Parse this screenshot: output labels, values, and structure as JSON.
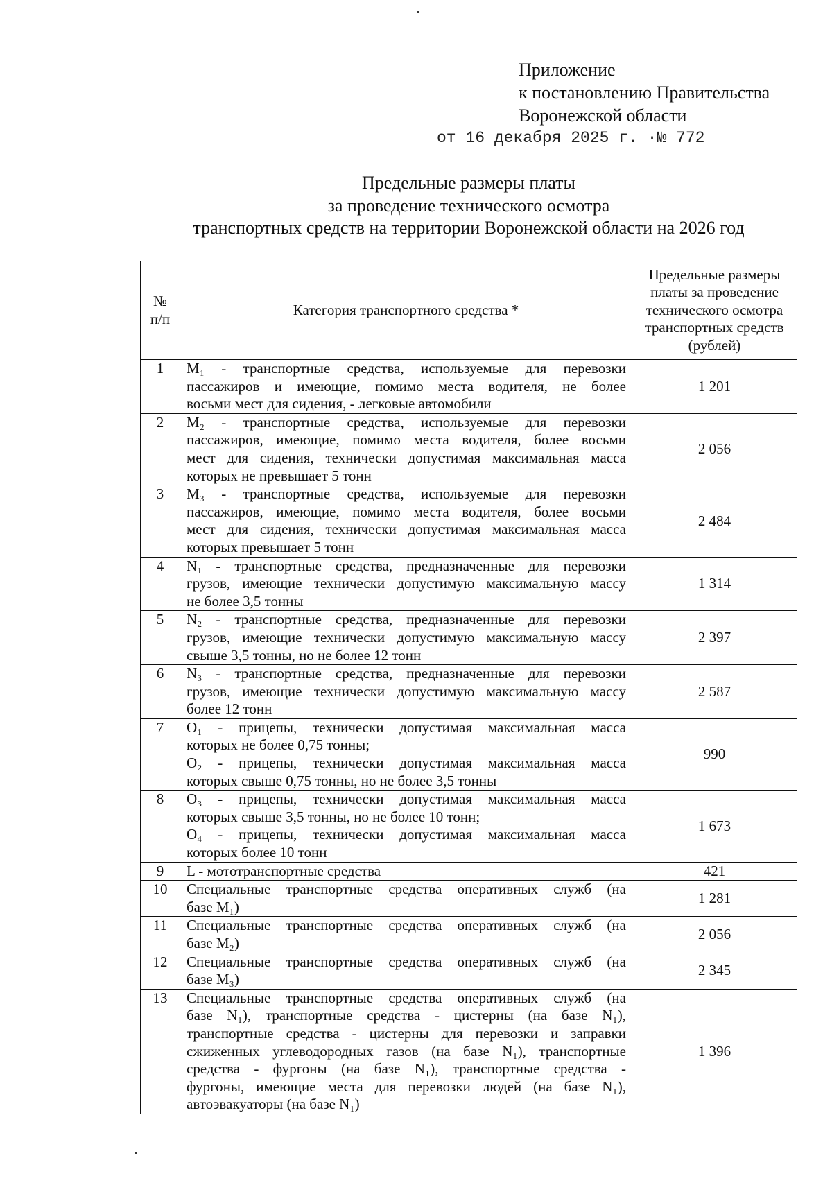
{
  "appendix": {
    "lines": [
      "Приложение",
      "к постановлению Правительства",
      "Воронежской области"
    ],
    "date_line": "от 16 декабря 2025 г. ·№ 772"
  },
  "title": {
    "lines": [
      "Предельные размеры платы",
      "за проведение технического осмотра",
      "транспортных средств на территории Воронежской области на 2026 год"
    ]
  },
  "table": {
    "headers": {
      "num": [
        "№",
        "п/п"
      ],
      "category": "Категория транспортного средства *",
      "price": [
        "Предельные размеры",
        "платы за проведение",
        "технического осмотра",
        "транспортных средств",
        "(рублей)"
      ]
    },
    "rows": [
      {
        "num": "1",
        "paragraphs": [
          [
            "M₁ - транспортные средства, используемые для перевозки",
            "пассажиров и имеющие, помимо места водителя, не более",
            "восьми мест для сидения, - легковые автомобили"
          ]
        ],
        "price": "1 201"
      },
      {
        "num": "2",
        "paragraphs": [
          [
            "M₂ - транспортные средства, используемые для перевозки",
            "пассажиров, имеющие, помимо места водителя, более восьми",
            "мест для сидения, технически допустимая максимальная масса",
            "которых не превышает 5 тонн"
          ]
        ],
        "price": "2 056"
      },
      {
        "num": "3",
        "paragraphs": [
          [
            "M₃ - транспортные средства, используемые для перевозки",
            "пассажиров, имеющие, помимо места водителя, более восьми",
            "мест для сидения, технически допустимая максимальная масса",
            "которых превышает 5 тонн"
          ]
        ],
        "price": "2 484"
      },
      {
        "num": "4",
        "paragraphs": [
          [
            "N₁ - транспортные средства, предназначенные для перевозки",
            "грузов, имеющие технически допустимую максимальную массу",
            "не более 3,5 тонны"
          ]
        ],
        "price": "1 314"
      },
      {
        "num": "5",
        "paragraphs": [
          [
            "N₂ - транспортные средства, предназначенные для перевозки",
            "грузов, имеющие технически допустимую максимальную массу",
            "свыше 3,5 тонны, но не более 12 тонн"
          ]
        ],
        "price": "2 397"
      },
      {
        "num": "6",
        "paragraphs": [
          [
            "N₃ - транспортные средства, предназначенные для перевозки",
            "грузов, имеющие технически допустимую максимальную массу",
            "более 12 тонн"
          ]
        ],
        "price": "2 587"
      },
      {
        "num": "7",
        "paragraphs": [
          [
            "O₁ - прицепы, технически допустимая максимальная масса",
            "которых не более 0,75 тонны;"
          ],
          [
            "O₂ - прицепы, технически допустимая максимальная масса",
            "которых свыше 0,75 тонны, но не более 3,5 тонны"
          ]
        ],
        "price": "990"
      },
      {
        "num": "8",
        "paragraphs": [
          [
            "O₃ - прицепы, технически допустимая максимальная масса",
            "которых свыше 3,5 тонны, но не более 10 тонн;"
          ],
          [
            "O₄ - прицепы, технически допустимая максимальная масса",
            "которых более 10 тонн"
          ]
        ],
        "price": "1 673"
      },
      {
        "num": "9",
        "paragraphs": [
          [
            "L - мототранспортные средства"
          ]
        ],
        "price": "421"
      },
      {
        "num": "10",
        "paragraphs": [
          [
            "Специальные транспортные средства оперативных служб (на",
            "базе M₁)"
          ]
        ],
        "price": "1 281"
      },
      {
        "num": "11",
        "paragraphs": [
          [
            "Специальные транспортные средства оперативных служб (на",
            "базе M₂)"
          ]
        ],
        "price": "2 056"
      },
      {
        "num": "12",
        "paragraphs": [
          [
            "Специальные транспортные средства оперативных служб (на",
            "базе M₃)"
          ]
        ],
        "price": "2 345"
      },
      {
        "num": "13",
        "paragraphs": [
          [
            "Специальные транспортные средства оперативных служб (на",
            "базе N₁), транспортные средства - цистерны (на базе N₁),",
            "транспортные средства - цистерны для перевозки и заправки",
            "сжиженных углеводородных газов (на базе N₁), транспортные",
            "средства - фургоны (на базе N₁), транспортные средства -",
            "фургоны, имеющие места для перевозки людей (на базе N₁),",
            "автоэвакуаторы (на базе N₁)"
          ]
        ],
        "price": "1 396"
      }
    ]
  }
}
